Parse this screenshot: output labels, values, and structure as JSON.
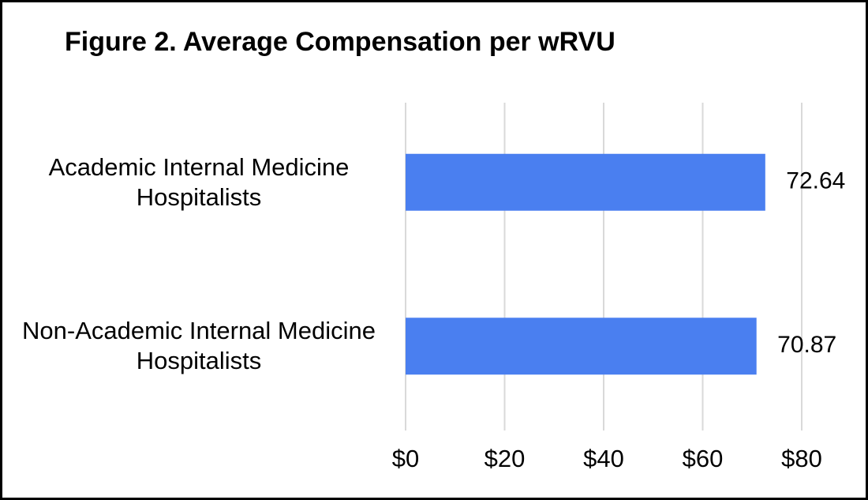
{
  "chart_data": {
    "type": "bar",
    "orientation": "horizontal",
    "title": "Figure 2. Average Compensation per wRVU",
    "categories": [
      "Academic Internal Medicine Hospitalists",
      "Non-Academic Internal Medicine Hospitalists"
    ],
    "values": [
      72.64,
      70.87
    ],
    "color": "#4a7ff0",
    "xlim": [
      0,
      80
    ],
    "xticks": [
      {
        "value": 0,
        "label": "$0"
      },
      {
        "value": 20,
        "label": "$20"
      },
      {
        "value": 40,
        "label": "$40"
      },
      {
        "value": 60,
        "label": "$60"
      },
      {
        "value": 80,
        "label": "$80"
      }
    ],
    "grid": true
  }
}
